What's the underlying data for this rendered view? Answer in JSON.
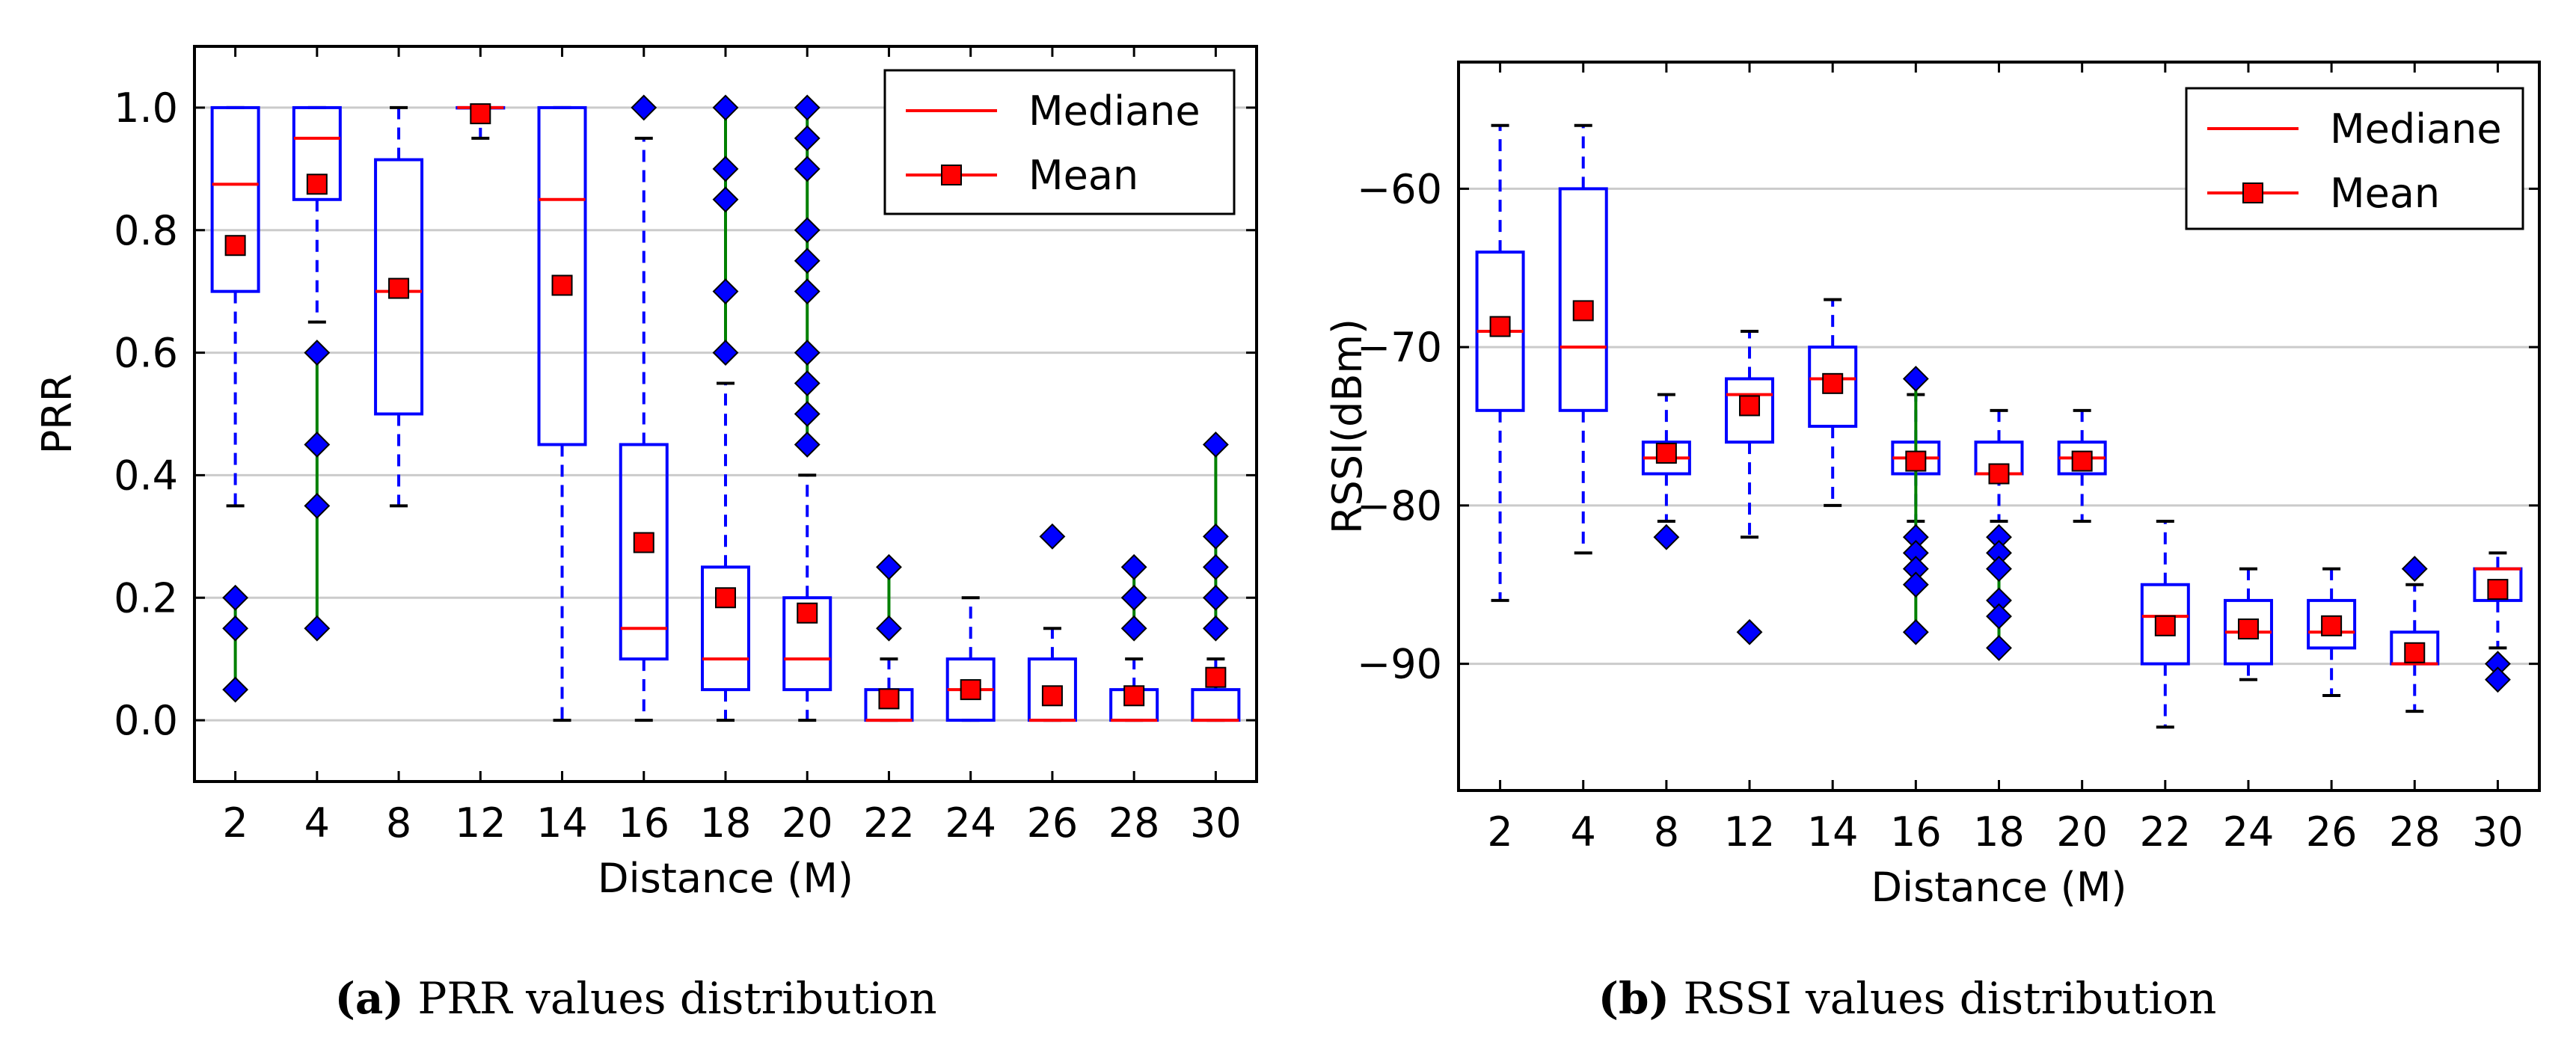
{
  "chart_data": [
    {
      "type": "box",
      "panel": "a",
      "xlabel": "Distance (M)",
      "ylabel": "PRR",
      "ylim": [
        -0.1,
        1.1
      ],
      "yticks": [
        0.0,
        0.2,
        0.4,
        0.6,
        0.8,
        1.0
      ],
      "ytick_labels": [
        "0.0",
        "0.2",
        "0.4",
        "0.6",
        "0.8",
        "1.0"
      ],
      "grid": true,
      "legend_position": "top-right",
      "legend": {
        "median": "Mediane",
        "mean": "Mean"
      },
      "categories": [
        "2",
        "4",
        "8",
        "12",
        "14",
        "16",
        "18",
        "20",
        "22",
        "24",
        "26",
        "28",
        "30"
      ],
      "boxes": [
        {
          "q1": 0.7,
          "median": 0.875,
          "q3": 1.0,
          "wlo": 0.35,
          "whi": 1.0,
          "mean": 0.775,
          "outliers": [
            0.2,
            0.15,
            0.05
          ]
        },
        {
          "q1": 0.85,
          "median": 0.95,
          "q3": 1.0,
          "wlo": 0.65,
          "whi": 1.0,
          "mean": 0.875,
          "outliers": [
            0.6,
            0.45,
            0.35,
            0.15
          ]
        },
        {
          "q1": 0.5,
          "median": 0.7,
          "q3": 0.915,
          "wlo": 0.35,
          "whi": 1.0,
          "mean": 0.705,
          "outliers": []
        },
        {
          "q1": 1.0,
          "median": 1.0,
          "q3": 1.0,
          "wlo": 0.95,
          "whi": 1.0,
          "mean": 0.99,
          "outliers": []
        },
        {
          "q1": 0.45,
          "median": 0.85,
          "q3": 1.0,
          "wlo": 0.0,
          "whi": 1.0,
          "mean": 0.71,
          "outliers": []
        },
        {
          "q1": 0.1,
          "median": 0.15,
          "q3": 0.45,
          "wlo": 0.0,
          "whi": 0.95,
          "mean": 0.29,
          "outliers": [
            1.0
          ]
        },
        {
          "q1": 0.05,
          "median": 0.1,
          "q3": 0.25,
          "wlo": 0.0,
          "whi": 0.55,
          "mean": 0.2,
          "outliers": [
            1.0,
            0.9,
            0.85,
            0.7,
            0.6
          ]
        },
        {
          "q1": 0.05,
          "median": 0.1,
          "q3": 0.2,
          "wlo": 0.0,
          "whi": 0.4,
          "mean": 0.175,
          "outliers": [
            1.0,
            0.95,
            0.9,
            0.8,
            0.75,
            0.7,
            0.6,
            0.55,
            0.5,
            0.45
          ]
        },
        {
          "q1": 0.0,
          "median": 0.0,
          "q3": 0.05,
          "wlo": 0.0,
          "whi": 0.1,
          "mean": 0.035,
          "outliers": [
            0.25,
            0.15
          ]
        },
        {
          "q1": 0.0,
          "median": 0.05,
          "q3": 0.1,
          "wlo": 0.0,
          "whi": 0.2,
          "mean": 0.05,
          "outliers": []
        },
        {
          "q1": 0.0,
          "median": 0.0,
          "q3": 0.1,
          "wlo": 0.0,
          "whi": 0.15,
          "mean": 0.04,
          "outliers": [
            0.3
          ]
        },
        {
          "q1": 0.0,
          "median": 0.0,
          "q3": 0.05,
          "wlo": 0.0,
          "whi": 0.1,
          "mean": 0.04,
          "outliers": [
            0.25,
            0.2,
            0.15
          ]
        },
        {
          "q1": 0.0,
          "median": 0.0,
          "q3": 0.05,
          "wlo": 0.0,
          "whi": 0.1,
          "mean": 0.07,
          "outliers": [
            0.45,
            0.3,
            0.25,
            0.2,
            0.15
          ]
        }
      ]
    },
    {
      "type": "box",
      "panel": "b",
      "xlabel": "Distance (M)",
      "ylabel": "RSSI(dBm)",
      "ylim": [
        -98,
        -52
      ],
      "yticks": [
        -90,
        -80,
        -70,
        -60
      ],
      "ytick_labels": [
        "−90",
        "−80",
        "−70",
        "−60"
      ],
      "grid": true,
      "legend_position": "top-right",
      "legend": {
        "median": "Mediane",
        "mean": "Mean"
      },
      "categories": [
        "2",
        "4",
        "8",
        "12",
        "14",
        "16",
        "18",
        "20",
        "22",
        "24",
        "26",
        "28",
        "30"
      ],
      "boxes": [
        {
          "q1": -74,
          "median": -69,
          "q3": -64,
          "wlo": -86,
          "whi": -56,
          "mean": -68.7,
          "outliers": []
        },
        {
          "q1": -74,
          "median": -70,
          "q3": -60,
          "wlo": -83,
          "whi": -56,
          "mean": -67.7,
          "outliers": []
        },
        {
          "q1": -78,
          "median": -77,
          "q3": -76,
          "wlo": -81,
          "whi": -73,
          "mean": -76.7,
          "outliers": [
            -82
          ]
        },
        {
          "q1": -76,
          "median": -73,
          "q3": -72,
          "wlo": -82,
          "whi": -69,
          "mean": -73.7,
          "outliers": [
            -88
          ]
        },
        {
          "q1": -75,
          "median": -72,
          "q3": -70,
          "wlo": -80,
          "whi": -67,
          "mean": -72.3,
          "outliers": []
        },
        {
          "q1": -78,
          "median": -77,
          "q3": -76,
          "wlo": -81,
          "whi": -73,
          "mean": -77.2,
          "outliers": [
            -72,
            -82,
            -83,
            -84,
            -85,
            -88
          ]
        },
        {
          "q1": -78,
          "median": -78,
          "q3": -76,
          "wlo": -81,
          "whi": -74,
          "mean": -78,
          "outliers": [
            -82,
            -83,
            -84,
            -86,
            -87,
            -89
          ]
        },
        {
          "q1": -78,
          "median": -77,
          "q3": -76,
          "wlo": -81,
          "whi": -74,
          "mean": -77.2,
          "outliers": []
        },
        {
          "q1": -90,
          "median": -87,
          "q3": -85,
          "wlo": -94,
          "whi": -81,
          "mean": -87.6,
          "outliers": []
        },
        {
          "q1": -90,
          "median": -88,
          "q3": -86,
          "wlo": -91,
          "whi": -84,
          "mean": -87.8,
          "outliers": []
        },
        {
          "q1": -89,
          "median": -88,
          "q3": -86,
          "wlo": -92,
          "whi": -84,
          "mean": -87.6,
          "outliers": []
        },
        {
          "q1": -90,
          "median": -90,
          "q3": -88,
          "wlo": -93,
          "whi": -85,
          "mean": -89.3,
          "outliers": [
            -84
          ]
        },
        {
          "q1": -86,
          "median": -84,
          "q3": -84,
          "wlo": -89,
          "whi": -83,
          "mean": -85.3,
          "outliers": [
            -90,
            -91
          ]
        }
      ]
    }
  ],
  "captions": {
    "a": {
      "label": "(a)",
      "text": " PRR values distribution"
    },
    "b": {
      "label": "(b)",
      "text": " RSSI values distribution"
    }
  },
  "colors": {
    "box": "#0000ff",
    "median": "#ff0000",
    "mean_fill": "#ff0000",
    "flier_fill": "#0000ff",
    "flier_line": "#008000",
    "grid": "#cbcbcb",
    "axis": "#000000"
  }
}
